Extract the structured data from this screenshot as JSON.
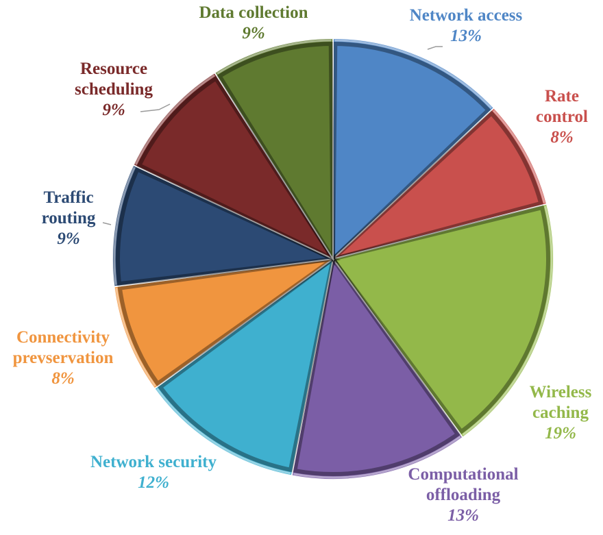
{
  "chart_data": {
    "type": "pie",
    "title": "",
    "slices": [
      {
        "label": [
          "Network access"
        ],
        "value": 13,
        "pct_label": "13%",
        "color": "#4f86c6",
        "text_color": "#4f86c6"
      },
      {
        "label": [
          "Rate",
          "control"
        ],
        "value": 8,
        "pct_label": "8%",
        "color": "#c9504d",
        "text_color": "#c9504d"
      },
      {
        "label": [
          "Wireless",
          "caching"
        ],
        "value": 19,
        "pct_label": "19%",
        "color": "#93b84a",
        "text_color": "#93b84a"
      },
      {
        "label": [
          "Computational",
          "offloading"
        ],
        "value": 13,
        "pct_label": "13%",
        "color": "#7b5ea6",
        "text_color": "#7b5ea6"
      },
      {
        "label": [
          "Network security"
        ],
        "value": 12,
        "pct_label": "12%",
        "color": "#3fb0cf",
        "text_color": "#3fb0cf"
      },
      {
        "label": [
          "Connectivity",
          "prevservation"
        ],
        "value": 8,
        "pct_label": "8%",
        "color": "#f0953f",
        "text_color": "#f0953f"
      },
      {
        "label": [
          "Traffic",
          "routing"
        ],
        "value": 9,
        "pct_label": "9%",
        "color": "#2c4a74",
        "text_color": "#2c4a74"
      },
      {
        "label": [
          "Resource",
          "scheduling"
        ],
        "value": 9,
        "pct_label": "9%",
        "color": "#7a2a2a",
        "text_color": "#7a2a2a"
      },
      {
        "label": [
          "Data collection"
        ],
        "value": 9,
        "pct_label": "9%",
        "color": "#5f7a30",
        "text_color": "#5f7a30"
      }
    ]
  }
}
